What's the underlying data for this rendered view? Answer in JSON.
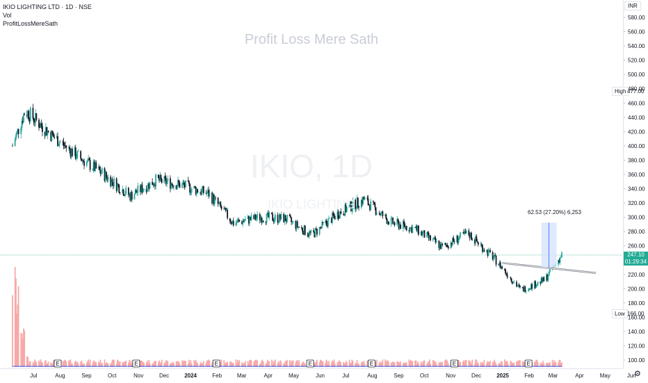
{
  "legend": {
    "symbol": "IKIO LIGHTING LTD · 1D · NSE",
    "vol": "Vol",
    "indicator": "ProfitLossMereSath"
  },
  "watermark": {
    "title": "Profit Loss Mere Sath",
    "ticker": "IKIO, 1D",
    "name": "IKIO LIGHTING"
  },
  "currency": "INR",
  "price_axis": {
    "ticks": [
      "580.00",
      "560.00",
      "540.00",
      "520.00",
      "500.00",
      "480.00",
      "460.00",
      "440.00",
      "420.00",
      "400.00",
      "380.00",
      "360.00",
      "340.00",
      "320.00",
      "300.00",
      "280.00",
      "260.00",
      "240.00",
      "220.00",
      "200.00",
      "180.00",
      "160.00",
      "140.00",
      "120.00",
      "100.00"
    ]
  },
  "time_axis": {
    "ticks": [
      "Jul",
      "Aug",
      "Sep",
      "Oct",
      "Nov",
      "Dec",
      "2024",
      "Feb",
      "Mar",
      "Apr",
      "May",
      "Jun",
      "Jul",
      "Aug",
      "Sep",
      "Oct",
      "Nov",
      "Dec",
      "2025",
      "Feb",
      "Mar",
      "Apr",
      "May",
      "Jun"
    ]
  },
  "tags": {
    "high_label": "High",
    "high_value": "477.00",
    "low_label": "Low",
    "low_value": "166.00",
    "last_price": "247.10",
    "countdown": "01:29:34"
  },
  "measure_label": "62.53 (27.20%) 6,253",
  "earnings_marker": "E",
  "colors": {
    "up": "#26a69a",
    "down": "#131722",
    "volume": "#f7a9a8",
    "volume_ma": "#2962ff",
    "measure_fill": "#d6e4fd",
    "last_line": "#22ab94"
  },
  "chart_data": {
    "type": "candlestick",
    "ylim": [
      95,
      590
    ],
    "x": [
      "2023-06-16",
      "2023-07-01",
      "2023-08-01",
      "2023-09-01",
      "2023-10-01",
      "2023-11-01",
      "2023-12-01",
      "2024-01-01",
      "2024-02-01",
      "2024-03-01",
      "2024-04-01",
      "2024-05-01",
      "2024-06-01",
      "2024-07-01",
      "2024-08-01",
      "2024-09-01",
      "2024-10-01",
      "2024-11-01",
      "2024-12-01",
      "2025-01-01",
      "2025-02-01",
      "2025-03-01",
      "2025-03-21"
    ],
    "close": [
      400,
      450,
      415,
      385,
      360,
      330,
      352,
      345,
      333,
      292,
      300,
      298,
      275,
      305,
      325,
      293,
      283,
      258,
      278,
      242,
      198,
      212,
      247.1
    ],
    "high": 477,
    "low": 166,
    "last": 247.1,
    "volume_spikes_note": "",
    "trendline": {
      "start": [
        "2025-01-10",
        236
      ],
      "end": [
        "2025-04-30",
        222
      ]
    },
    "measure": {
      "start": "2025-02-25",
      "end": "2025-03-15",
      "from": 230,
      "to": 292.5,
      "change": 62.53,
      "percent": 27.2
    },
    "earnings_dates": [
      "2023-08-08",
      "2023-11-08",
      "2024-02-10",
      "2024-05-30",
      "2024-08-10",
      "2024-11-15",
      "2025-02-10"
    ]
  }
}
